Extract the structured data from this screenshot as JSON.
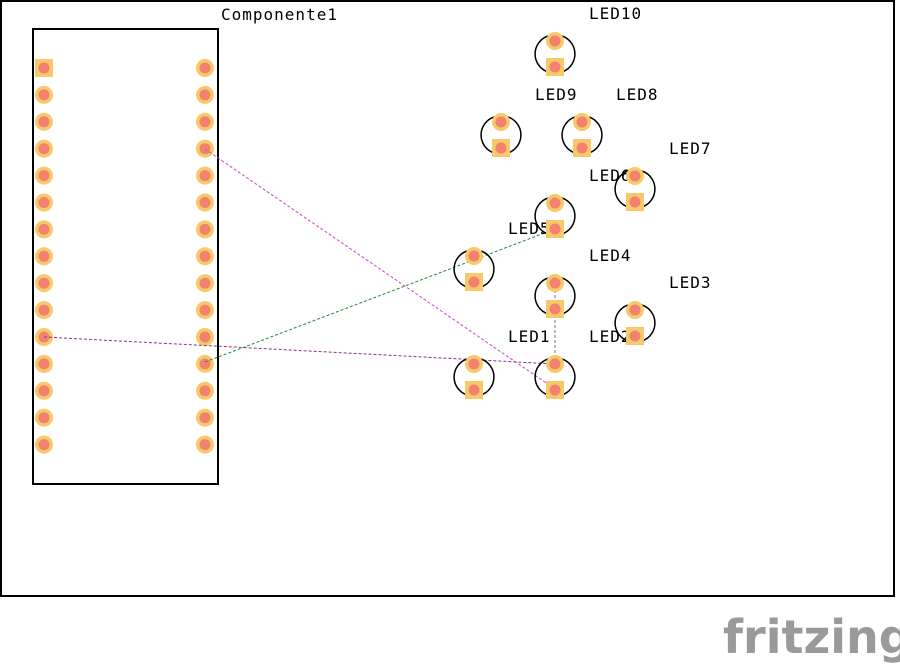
{
  "app": {
    "brand": "fritzing"
  },
  "component": {
    "label": "Componente1",
    "pins_per_side": 15
  },
  "leds": [
    {
      "id": "led1",
      "label": "LED1"
    },
    {
      "id": "led2",
      "label": "LED2"
    },
    {
      "id": "led3",
      "label": "LED3"
    },
    {
      "id": "led4",
      "label": "LED4"
    },
    {
      "id": "led5",
      "label": "LED5"
    },
    {
      "id": "led6",
      "label": "LED6"
    },
    {
      "id": "led7",
      "label": "LED7"
    },
    {
      "id": "led8",
      "label": "LED8"
    },
    {
      "id": "led9",
      "label": "LED9"
    },
    {
      "id": "led10",
      "label": "LED10"
    }
  ],
  "colors": {
    "pad_outer": "#f7c96a",
    "pad_inner": "#f0826e",
    "wire_magenta": "#cc44cc",
    "wire_green": "#1e8a3c",
    "wire_purple": "#883388",
    "wire_gray": "#777777"
  }
}
